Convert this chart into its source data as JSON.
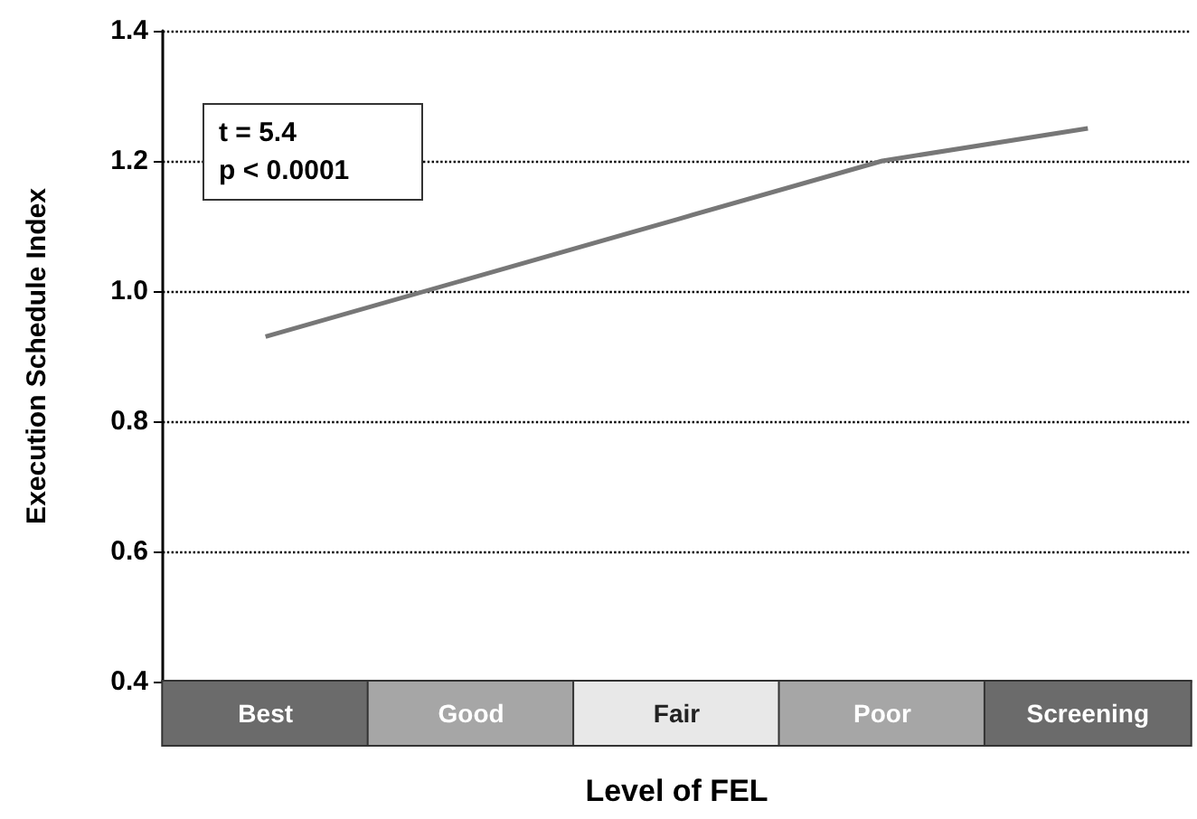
{
  "chart_data": {
    "type": "line",
    "xlabel": "Level of FEL",
    "ylabel": "Execution Schedule Index",
    "categories": [
      "Best",
      "Good",
      "Fair",
      "Poor",
      "Screening"
    ],
    "series": [
      {
        "color": "#777777",
        "values": [
          0.93,
          1.02,
          1.11,
          1.2,
          1.25
        ]
      }
    ],
    "ylim": [
      0.4,
      1.4
    ],
    "yticks": [
      0.4,
      0.6,
      0.8,
      {
        "value": 1,
        "label": "1.0"
      },
      1.2,
      1.4
    ],
    "grid": "y",
    "line_style": "solid",
    "marker": "none",
    "annotations": [
      "t = 5.4\np < 0.0001"
    ]
  }
}
